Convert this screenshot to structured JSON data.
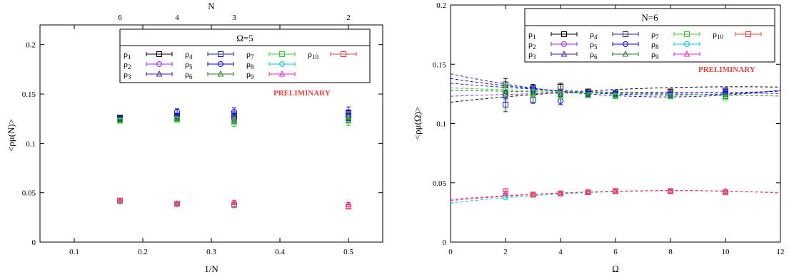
{
  "chart_data": [
    {
      "type": "scatter",
      "xlabel": "1/N",
      "ylabel": "<ρμ(N)>",
      "xlim": [
        0.05,
        0.55
      ],
      "ylim": [
        0,
        0.22
      ],
      "xticks": [
        0.1,
        0.2,
        0.3,
        0.4,
        0.5
      ],
      "yticks": [
        0,
        0.05,
        0.1,
        0.15,
        0.2
      ],
      "top_axis": {
        "label": "N",
        "ticks": [
          6,
          4,
          3,
          2
        ]
      },
      "legend_title": "Ω=5",
      "annotation": "PRELIMINARY",
      "series": [
        {
          "name": "ρ1",
          "sub": "1",
          "color": "#000000",
          "marker": "square",
          "x": [
            0.1667,
            0.25,
            0.3333,
            0.5
          ],
          "y": [
            0.126,
            0.127,
            0.126,
            0.128
          ],
          "err": [
            0.002,
            0.002,
            0.004,
            0.005
          ]
        },
        {
          "name": "ρ2",
          "sub": "2",
          "color": "#a020f0",
          "marker": "circle",
          "x": [
            0.1667,
            0.25,
            0.3333,
            0.5
          ],
          "y": [
            0.124,
            0.126,
            0.125,
            0.127
          ],
          "err": [
            0.002,
            0.002,
            0.004,
            0.005
          ]
        },
        {
          "name": "ρ3",
          "sub": "3",
          "color": "#3a1fb0",
          "marker": "triangle",
          "x": [
            0.1667,
            0.25,
            0.3333,
            0.5
          ],
          "y": [
            0.125,
            0.127,
            0.128,
            0.129
          ],
          "err": [
            0.002,
            0.002,
            0.004,
            0.005
          ]
        },
        {
          "name": "ρ4",
          "sub": "4",
          "color": "#1c2a99",
          "marker": "square",
          "x": [
            0.1667,
            0.25,
            0.3333,
            0.5
          ],
          "y": [
            0.125,
            0.128,
            0.128,
            0.131
          ],
          "err": [
            0.002,
            0.002,
            0.004,
            0.006
          ]
        },
        {
          "name": "ρ5",
          "sub": "5",
          "color": "#0000ff",
          "marker": "circle",
          "x": [
            0.1667,
            0.25,
            0.3333,
            0.5
          ],
          "y": [
            0.125,
            0.132,
            0.132,
            0.128
          ],
          "err": [
            0.002,
            0.003,
            0.004,
            0.005
          ]
        },
        {
          "name": "ρ6",
          "sub": "6",
          "color": "#208020",
          "marker": "triangle",
          "x": [
            0.1667,
            0.25,
            0.3333,
            0.5
          ],
          "y": [
            0.124,
            0.125,
            0.124,
            0.126
          ],
          "err": [
            0.002,
            0.002,
            0.004,
            0.005
          ]
        },
        {
          "name": "ρ7",
          "sub": "7",
          "color": "#33cc33",
          "marker": "square",
          "x": [
            0.1667,
            0.25,
            0.3333,
            0.5
          ],
          "y": [
            0.123,
            0.124,
            0.121,
            0.123
          ],
          "err": [
            0.002,
            0.002,
            0.004,
            0.005
          ]
        },
        {
          "name": "ρ8",
          "sub": "8",
          "color": "#00ccdd",
          "marker": "circle",
          "x": [
            0.1667,
            0.25,
            0.3333,
            0.5
          ],
          "y": [
            0.041,
            0.038,
            0.037,
            0.036
          ],
          "err": [
            0.001,
            0.001,
            0.002,
            0.002
          ]
        },
        {
          "name": "ρ9",
          "sub": "9",
          "color": "#ee22cc",
          "marker": "triangle",
          "x": [
            0.1667,
            0.25,
            0.3333,
            0.5
          ],
          "y": [
            0.042,
            0.039,
            0.04,
            0.038
          ],
          "err": [
            0.001,
            0.001,
            0.002,
            0.002
          ]
        },
        {
          "name": "ρ10",
          "sub": "10",
          "color": "#e8413c",
          "marker": "square",
          "x": [
            0.1667,
            0.25,
            0.3333,
            0.5
          ],
          "y": [
            0.042,
            0.039,
            0.038,
            0.036
          ],
          "err": [
            0.001,
            0.001,
            0.002,
            0.002
          ]
        }
      ]
    },
    {
      "type": "scatter",
      "xlabel": "Ω",
      "ylabel": "<ρμ(Ω)>",
      "xlim": [
        0,
        12
      ],
      "ylim": [
        0,
        0.2
      ],
      "xticks": [
        0,
        2,
        4,
        6,
        8,
        10,
        12
      ],
      "yticks": [
        0,
        0.05,
        0.1,
        0.15,
        0.2
      ],
      "legend_title": "N=6",
      "annotation": "PRELIMINARY",
      "series": [
        {
          "name": "ρ1",
          "sub": "1",
          "color": "#000000",
          "marker": "square",
          "x": [
            2,
            3,
            4,
            5,
            6,
            8,
            10
          ],
          "y": [
            0.133,
            0.13,
            0.131,
            0.127,
            0.126,
            0.127,
            0.127
          ],
          "err": [
            0.005,
            0.003,
            0.003,
            0.002,
            0.002,
            0.002,
            0.002
          ],
          "fit": [
            0.118,
            0.0025,
            -0.00012
          ]
        },
        {
          "name": "ρ2",
          "sub": "2",
          "color": "#a020f0",
          "marker": "circle",
          "x": [
            2,
            3,
            4,
            5,
            6,
            8,
            10
          ],
          "y": [
            0.125,
            0.127,
            0.126,
            0.125,
            0.125,
            0.125,
            0.125
          ],
          "err": [
            0.005,
            0.003,
            0.003,
            0.002,
            0.002,
            0.002,
            0.002
          ],
          "fit": [
            0.123,
            0.0009,
            -6e-05
          ]
        },
        {
          "name": "ρ3",
          "sub": "3",
          "color": "#3a1fb0",
          "marker": "triangle",
          "x": [
            2,
            3,
            4,
            5,
            6,
            8,
            10
          ],
          "y": [
            0.127,
            0.128,
            0.125,
            0.125,
            0.124,
            0.124,
            0.125
          ],
          "err": [
            0.005,
            0.003,
            0.003,
            0.002,
            0.002,
            0.002,
            0.002
          ],
          "fit": [
            0.134,
            -0.002,
            0.00012
          ]
        },
        {
          "name": "ρ4",
          "sub": "4",
          "color": "#1c2a99",
          "marker": "square",
          "x": [
            2,
            3,
            4,
            5,
            6,
            8,
            10
          ],
          "y": [
            0.116,
            0.12,
            0.125,
            0.126,
            0.126,
            0.126,
            0.128
          ],
          "err": [
            0.006,
            0.003,
            0.003,
            0.002,
            0.002,
            0.002,
            0.002
          ],
          "fit": [
            0.142,
            -0.005,
            0.00032
          ]
        },
        {
          "name": "ρ5",
          "sub": "5",
          "color": "#0000ff",
          "marker": "circle",
          "x": [
            2,
            3,
            4,
            5,
            6,
            8,
            10
          ],
          "y": [
            0.124,
            0.129,
            0.119,
            0.125,
            0.125,
            0.124,
            0.126
          ],
          "err": [
            0.006,
            0.003,
            0.003,
            0.002,
            0.002,
            0.002,
            0.002
          ],
          "fit": [
            0.138,
            -0.0035,
            0.00022
          ]
        },
        {
          "name": "ρ6",
          "sub": "6",
          "color": "#208020",
          "marker": "triangle",
          "x": [
            2,
            3,
            4,
            5,
            6,
            8,
            10
          ],
          "y": [
            0.126,
            0.125,
            0.124,
            0.124,
            0.124,
            0.123,
            0.123
          ],
          "err": [
            0.005,
            0.003,
            0.003,
            0.002,
            0.002,
            0.002,
            0.002
          ],
          "fit": [
            0.128,
            -0.0004,
            0.0
          ]
        },
        {
          "name": "ρ7",
          "sub": "7",
          "color": "#33cc33",
          "marker": "square",
          "x": [
            2,
            3,
            4,
            5,
            6,
            8,
            10
          ],
          "y": [
            0.128,
            0.126,
            0.124,
            0.124,
            0.123,
            0.123,
            0.122
          ],
          "err": [
            0.005,
            0.003,
            0.003,
            0.002,
            0.002,
            0.002,
            0.002
          ],
          "fit": [
            0.13,
            -0.0008,
            2e-05
          ]
        },
        {
          "name": "ρ8",
          "sub": "8",
          "color": "#00ccdd",
          "marker": "circle",
          "x": [
            2,
            3,
            4,
            5,
            6,
            8,
            10
          ],
          "y": [
            0.038,
            0.04,
            0.041,
            0.042,
            0.043,
            0.043,
            0.042
          ],
          "err": [
            0.002,
            0.001,
            0.001,
            0.001,
            0.001,
            0.001,
            0.001
          ],
          "fit": [
            0.033,
            0.0025,
            -0.00015
          ]
        },
        {
          "name": "ρ9",
          "sub": "9",
          "color": "#ee22cc",
          "marker": "triangle",
          "x": [
            2,
            3,
            4,
            5,
            6,
            8,
            10
          ],
          "y": [
            0.041,
            0.04,
            0.041,
            0.042,
            0.043,
            0.043,
            0.043
          ],
          "err": [
            0.002,
            0.001,
            0.001,
            0.001,
            0.001,
            0.001,
            0.001
          ],
          "fit": [
            0.036,
            0.0018,
            -0.00011
          ]
        },
        {
          "name": "ρ10",
          "sub": "10",
          "color": "#e8413c",
          "marker": "square",
          "x": [
            2,
            3,
            4,
            5,
            6,
            8,
            10
          ],
          "y": [
            0.043,
            0.04,
            0.041,
            0.042,
            0.043,
            0.043,
            0.042
          ],
          "err": [
            0.002,
            0.001,
            0.001,
            0.001,
            0.001,
            0.001,
            0.001
          ],
          "fit": [
            0.035,
            0.0021,
            -0.00013
          ]
        }
      ]
    }
  ]
}
